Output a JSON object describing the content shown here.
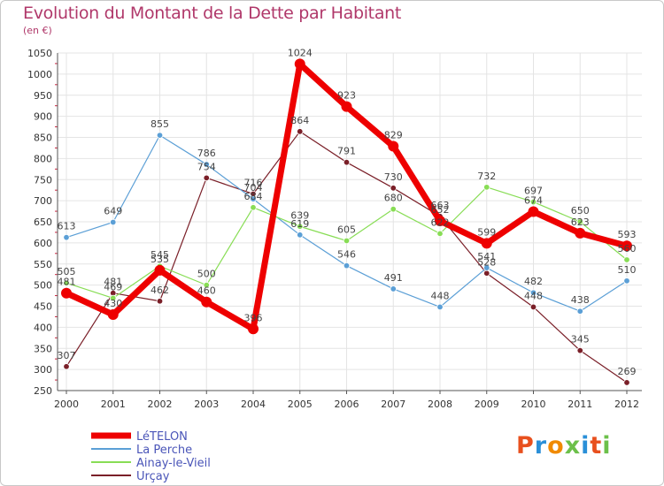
{
  "chart_data": {
    "type": "line",
    "title": "Evolution du Montant de la Dette par Habitant",
    "subtitle": "(en €)",
    "x": [
      "2000",
      "2001",
      "2002",
      "2003",
      "2004",
      "2005",
      "2006",
      "2007",
      "2008",
      "2009",
      "2010",
      "2011",
      "2012"
    ],
    "ylim": [
      250,
      1050
    ],
    "yticks": [
      250,
      300,
      350,
      400,
      450,
      500,
      550,
      600,
      650,
      700,
      750,
      800,
      850,
      900,
      950,
      1000,
      1050
    ],
    "grid": true,
    "legend_position": "bottom-left",
    "series": [
      {
        "name": "LéTELON",
        "color": "#ee0000",
        "values": [
          481,
          430,
          535,
          460,
          396,
          1024,
          923,
          829,
          652,
          599,
          674,
          623,
          593
        ]
      },
      {
        "name": "La Perche",
        "color": "#5b9fd6",
        "values": [
          613,
          649,
          855,
          786,
          704,
          619,
          546,
          491,
          448,
          541,
          482,
          438,
          510
        ]
      },
      {
        "name": "Ainay-le-Vieil",
        "color": "#88dd55",
        "values": [
          505,
          469,
          545,
          500,
          684,
          639,
          605,
          680,
          622,
          732,
          697,
          650,
          560
        ]
      },
      {
        "name": "Urçay",
        "color": "#7a1f28",
        "values": [
          307,
          481,
          462,
          754,
          716,
          864,
          791,
          730,
          663,
          528,
          448,
          345,
          269
        ]
      }
    ]
  },
  "logo": {
    "text": "Proxiti",
    "colors": [
      "#e8501e",
      "#2a8fd8",
      "#f08a00",
      "#6cc04a",
      "#2a8fd8",
      "#e8501e",
      "#6cc04a"
    ]
  }
}
